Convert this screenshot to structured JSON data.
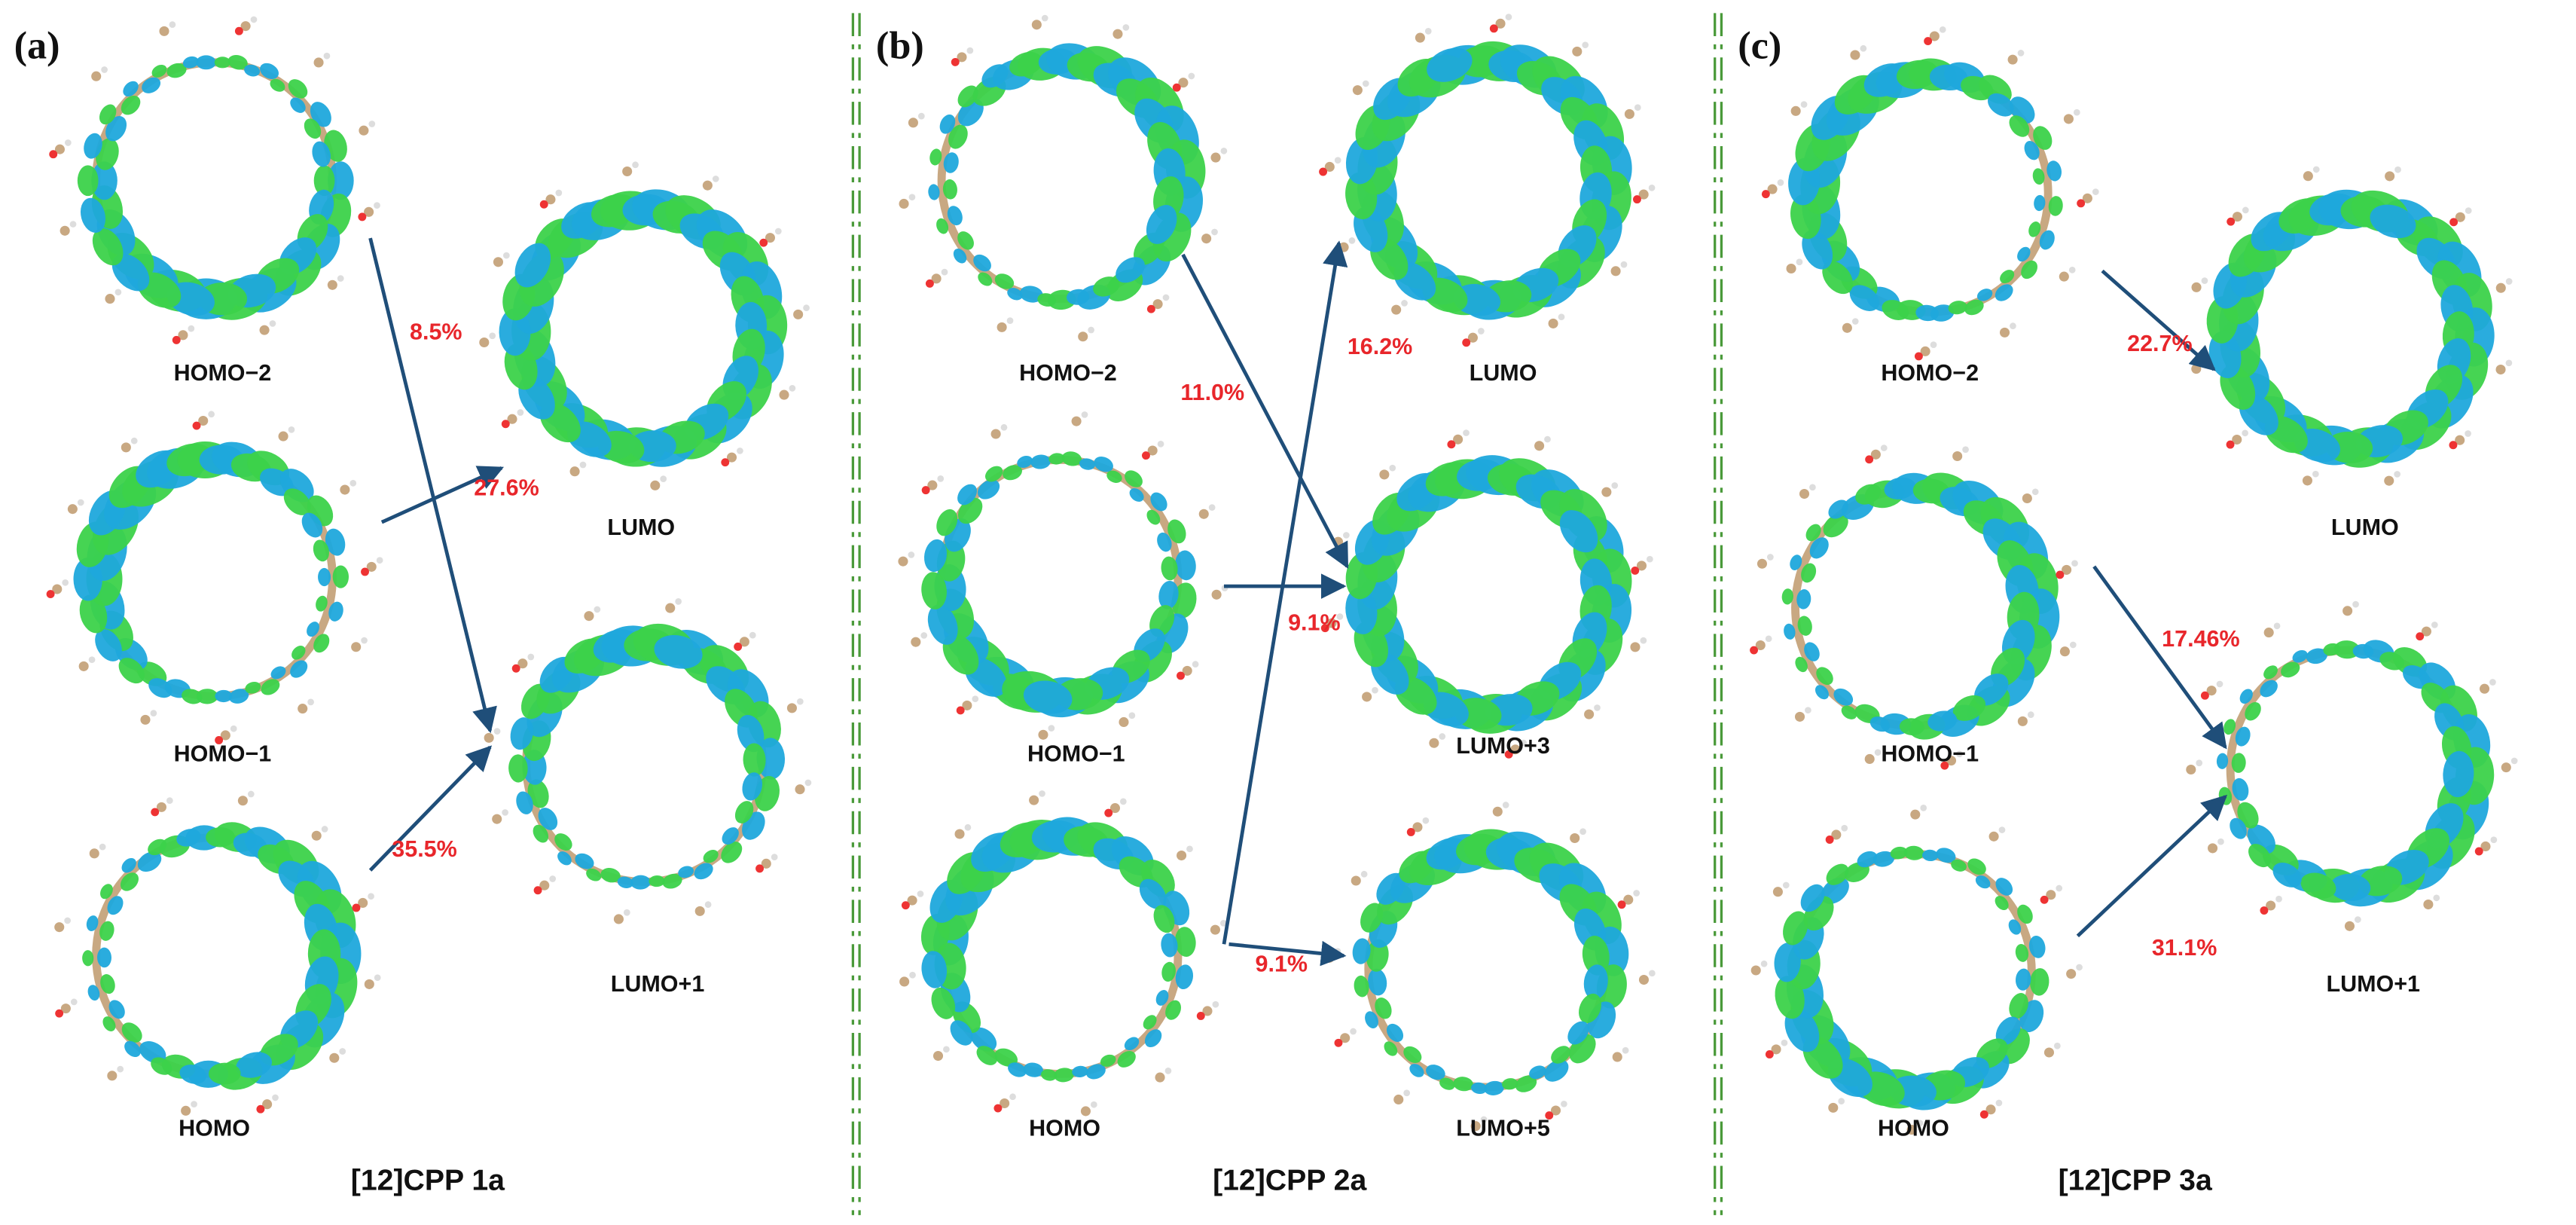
{
  "panels": [
    {
      "label": "(a)",
      "title": "[12]CPP 1a",
      "orbitals": [
        "HOMO−2",
        "HOMO−1",
        "HOMO",
        "LUMO",
        "LUMO+1"
      ],
      "transitions": [
        "8.5%",
        "27.6%",
        "35.5%"
      ]
    },
    {
      "label": "(b)",
      "title": "[12]CPP 2a",
      "orbitals": [
        "HOMO−2",
        "HOMO−1",
        "HOMO",
        "LUMO",
        "LUMO+3",
        "LUMO+5"
      ],
      "transitions": [
        "11.0%",
        "16.2%",
        "9.1%",
        "9.1%"
      ]
    },
    {
      "label": "(c)",
      "title": "[12]CPP 3a",
      "orbitals": [
        "HOMO−2",
        "HOMO−1",
        "HOMO",
        "LUMO",
        "LUMO+1"
      ],
      "transitions": [
        "22.7%",
        "17.46%",
        "31.1%"
      ]
    }
  ]
}
